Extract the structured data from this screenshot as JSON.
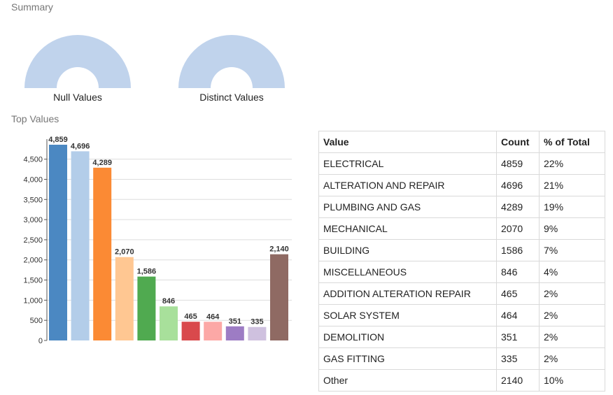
{
  "summary": {
    "title": "Summary",
    "null_label": "Null Values",
    "distinct_label": "Distinct Values",
    "gauge_color": "#c0d3ec"
  },
  "top_values": {
    "title": "Top Values"
  },
  "table": {
    "headers": [
      "Value",
      "Count",
      "% of Total"
    ],
    "rows": [
      [
        "ELECTRICAL",
        "4859",
        "22%"
      ],
      [
        "ALTERATION AND REPAIR",
        "4696",
        "21%"
      ],
      [
        "PLUMBING AND GAS",
        "4289",
        "19%"
      ],
      [
        "MECHANICAL",
        "2070",
        "9%"
      ],
      [
        "BUILDING",
        "1586",
        "7%"
      ],
      [
        "MISCELLANEOUS",
        "846",
        "4%"
      ],
      [
        "ADDITION ALTERATION REPAIR",
        "465",
        "2%"
      ],
      [
        "SOLAR SYSTEM",
        "464",
        "2%"
      ],
      [
        "DEMOLITION",
        "351",
        "2%"
      ],
      [
        "GAS FITTING",
        "335",
        "2%"
      ],
      [
        "Other",
        "2140",
        "10%"
      ]
    ]
  },
  "chart_data": {
    "type": "bar",
    "categories": [
      "ELECTRICAL",
      "ALTERATION AND REPAIR",
      "PLUMBING AND GAS",
      "MECHANICAL",
      "BUILDING",
      "MISCELLANEOUS",
      "ADDITION ALTERATION REPAIR",
      "SOLAR SYSTEM",
      "DEMOLITION",
      "GAS FITTING",
      "Other"
    ],
    "values": [
      4859,
      4696,
      4289,
      2070,
      1586,
      846,
      465,
      464,
      351,
      335,
      2140
    ],
    "value_labels": [
      "4,859",
      "4,696",
      "4,289",
      "2,070",
      "1,586",
      "846",
      "465",
      "464",
      "351",
      "335",
      "2,140"
    ],
    "colors": [
      "#4b88c2",
      "#b3cde9",
      "#fb8a34",
      "#ffc792",
      "#50aa50",
      "#a8e09b",
      "#d9494c",
      "#fca8a6",
      "#9d7cc4",
      "#cfc1df",
      "#8f6a63"
    ],
    "y_ticks": [
      0,
      500,
      1000,
      1500,
      2000,
      2500,
      3000,
      3500,
      4000,
      4500
    ],
    "y_tick_labels": [
      "0",
      "500",
      "1,000",
      "1,500",
      "2,000",
      "2,500",
      "3,000",
      "3,500",
      "4,000",
      "4,500"
    ],
    "ylim": [
      0,
      4859
    ],
    "grid": true,
    "legend": "none"
  }
}
